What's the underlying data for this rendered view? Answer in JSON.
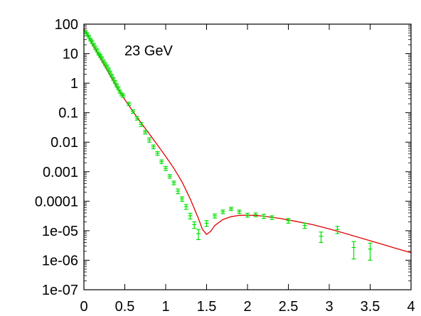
{
  "chart_data": {
    "type": "scatter",
    "title": "",
    "xlabel": "",
    "ylabel": "",
    "annotation": "23 GeV",
    "xlim": [
      0,
      4
    ],
    "ylim": [
      1e-07,
      100
    ],
    "y_scale": "log",
    "grid": false,
    "x_ticks": [
      "0",
      "0.5",
      "1",
      "1.5",
      "2",
      "2.5",
      "3",
      "3.5",
      "4"
    ],
    "y_ticks": [
      "1e-07",
      "1e-06",
      "1e-05",
      "0.0001",
      "0.001",
      "0.01",
      "0.1",
      "1",
      "10",
      "100"
    ],
    "colors": {
      "points": "#00e000",
      "curve": "#e00000"
    },
    "series": [
      {
        "kind": "points",
        "points": [
          [
            0.02,
            55,
            6
          ],
          [
            0.04,
            46,
            5
          ],
          [
            0.06,
            38,
            4
          ],
          [
            0.08,
            30,
            3
          ],
          [
            0.1,
            25,
            3
          ],
          [
            0.12,
            20,
            2
          ],
          [
            0.14,
            16,
            2
          ],
          [
            0.16,
            13,
            1.5
          ],
          [
            0.18,
            10,
            1
          ],
          [
            0.2,
            8.5,
            1
          ],
          [
            0.22,
            7,
            0.8
          ],
          [
            0.24,
            5.5,
            0.6
          ],
          [
            0.26,
            4.5,
            0.5
          ],
          [
            0.28,
            3.7,
            0.4
          ],
          [
            0.3,
            3.0,
            0.3
          ],
          [
            0.32,
            2.3,
            0.25
          ],
          [
            0.34,
            1.8,
            0.2
          ],
          [
            0.36,
            1.4,
            0.15
          ],
          [
            0.38,
            1.1,
            0.12
          ],
          [
            0.4,
            0.85,
            0.1
          ],
          [
            0.42,
            0.68,
            0.08
          ],
          [
            0.44,
            0.52,
            0.06
          ],
          [
            0.46,
            0.42,
            0.05
          ],
          [
            0.48,
            0.38,
            0.05
          ],
          [
            0.55,
            0.2,
            0.025
          ],
          [
            0.6,
            0.11,
            0.015
          ],
          [
            0.65,
            0.065,
            0.009
          ],
          [
            0.7,
            0.04,
            0.006
          ],
          [
            0.75,
            0.022,
            0.003
          ],
          [
            0.8,
            0.012,
            0.002
          ],
          [
            0.85,
            0.007,
            0.001
          ],
          [
            0.9,
            0.0042,
            0.0006
          ],
          [
            0.95,
            0.0022,
            0.0003
          ],
          [
            1.0,
            0.0013,
            0.0002
          ],
          [
            1.05,
            0.0007,
            0.0001
          ],
          [
            1.1,
            0.00042,
            6e-05
          ],
          [
            1.15,
            0.00022,
            4e-05
          ],
          [
            1.2,
            0.00012,
            2e-05
          ],
          [
            1.25,
            6.5e-05,
            1.2e-05
          ],
          [
            1.3,
            3.2e-05,
            7e-06
          ],
          [
            1.35,
            1.6e-05,
            4e-06
          ],
          [
            1.4,
            8e-06,
            3e-06
          ],
          [
            1.5,
            1.8e-05,
            4e-06
          ],
          [
            1.6,
            3.2e-05,
            5e-06
          ],
          [
            1.7,
            4.4e-05,
            6e-06
          ],
          [
            1.8,
            5.5e-05,
            7e-06
          ],
          [
            1.9,
            4.4e-05,
            6e-06
          ],
          [
            2.0,
            3.4e-05,
            5e-06
          ],
          [
            2.1,
            3.5e-05,
            5e-06
          ],
          [
            2.2,
            3.1e-05,
            5e-06
          ],
          [
            2.3,
            2.8e-05,
            4e-06
          ],
          [
            2.5,
            2.2e-05,
            4e-06
          ],
          [
            2.7,
            1.5e-05,
            3e-06
          ],
          [
            2.9,
            6.5e-06,
            2.5e-06
          ],
          [
            3.1,
            1.1e-05,
            3e-06
          ],
          [
            3.3,
            2.7e-06,
            1.6e-06
          ],
          [
            3.5,
            2.4e-06,
            1.4e-06
          ]
        ]
      },
      {
        "kind": "curve",
        "points": [
          [
            0.0,
            70
          ],
          [
            0.1,
            22
          ],
          [
            0.2,
            7
          ],
          [
            0.3,
            2.3
          ],
          [
            0.4,
            0.75
          ],
          [
            0.5,
            0.28
          ],
          [
            0.6,
            0.11
          ],
          [
            0.7,
            0.045
          ],
          [
            0.8,
            0.019
          ],
          [
            0.9,
            0.008
          ],
          [
            1.0,
            0.0033
          ],
          [
            1.1,
            0.0013
          ],
          [
            1.2,
            0.00045
          ],
          [
            1.3,
            0.00012
          ],
          [
            1.4,
            2.6e-05
          ],
          [
            1.45,
            1.1e-05
          ],
          [
            1.5,
            7.5e-06
          ],
          [
            1.55,
            9.5e-06
          ],
          [
            1.6,
            1.5e-05
          ],
          [
            1.7,
            2.4e-05
          ],
          [
            1.8,
            3e-05
          ],
          [
            1.9,
            3.3e-05
          ],
          [
            2.0,
            3.35e-05
          ],
          [
            2.1,
            3.3e-05
          ],
          [
            2.2,
            3.1e-05
          ],
          [
            2.4,
            2.6e-05
          ],
          [
            2.6,
            2.05e-05
          ],
          [
            2.8,
            1.6e-05
          ],
          [
            3.0,
            1.15e-05
          ],
          [
            3.2,
            8e-06
          ],
          [
            3.4,
            5.5e-06
          ],
          [
            3.6,
            3.8e-06
          ],
          [
            3.8,
            2.6e-06
          ],
          [
            4.0,
            1.8e-06
          ]
        ]
      }
    ]
  }
}
